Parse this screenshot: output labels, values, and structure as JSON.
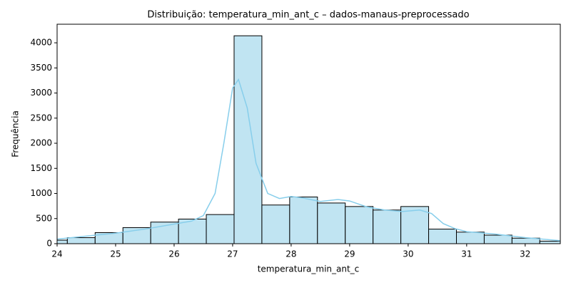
{
  "chart_data": {
    "type": "histogram",
    "title": "Distribuição: temperatura_min_ant_c – dados-manaus-preprocessado",
    "x_label": "temperatura_min_ant_c",
    "y_label": "Frequência",
    "bins": [
      23.7,
      24.175,
      24.65,
      25.125,
      25.6,
      26.075,
      26.55,
      27.025,
      27.5,
      27.975,
      28.45,
      28.925,
      29.4,
      29.875,
      30.35,
      30.825,
      31.3,
      31.775,
      32.25,
      32.725
    ],
    "counts": [
      70,
      120,
      220,
      320,
      430,
      490,
      580,
      4140,
      770,
      930,
      810,
      740,
      670,
      740,
      290,
      230,
      170,
      110,
      50
    ],
    "color": "#c0e4f2",
    "edge_color": "#000000",
    "kde": {
      "color": "#87ceeb",
      "x": [
        24,
        24.5,
        25,
        25.5,
        26,
        26.3,
        26.5,
        26.7,
        26.85,
        27.0,
        27.1,
        27.25,
        27.4,
        27.6,
        27.8,
        28.0,
        28.2,
        28.5,
        28.8,
        29.0,
        29.3,
        29.6,
        29.9,
        30.2,
        30.4,
        30.6,
        30.8,
        31.0,
        31.5,
        32.0,
        32.6
      ],
      "y": [
        90,
        150,
        210,
        290,
        390,
        450,
        560,
        1000,
        2000,
        3100,
        3270,
        2700,
        1600,
        1000,
        900,
        940,
        910,
        840,
        880,
        850,
        730,
        670,
        640,
        670,
        600,
        400,
        300,
        240,
        190,
        120,
        60
      ]
    },
    "xlim": [
      24,
      32.6
    ],
    "ylim": [
      0,
      4370
    ],
    "xticks": [
      24,
      25,
      26,
      27,
      28,
      29,
      30,
      31,
      32
    ],
    "yticks": [
      0,
      500,
      1000,
      1500,
      2000,
      2500,
      3000,
      3500,
      4000
    ]
  }
}
